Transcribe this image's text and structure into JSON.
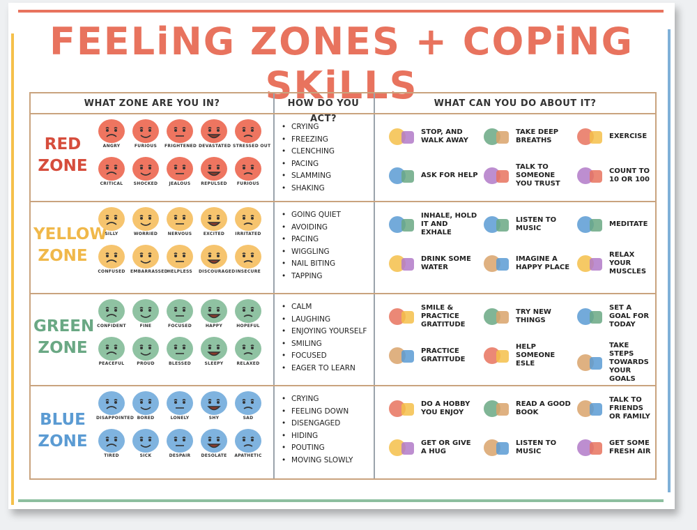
{
  "title": "FEELiNG ZONES + COPiNG SKiLLS",
  "headers": {
    "zone": "WHAT ZONE ARE YOU IN?",
    "act": "HOW DO YOU ACT?",
    "do": "WHAT CAN YOU DO ABOUT IT?"
  },
  "colors": {
    "red": "#ee7560",
    "yellow": "#f6c46e",
    "green": "#8fc2a2",
    "blue": "#7fb3df",
    "red_text": "#d64d3c",
    "yellow_text": "#f0b84a",
    "green_text": "#6aa884",
    "blue_text": "#5b9bd3"
  },
  "zones": [
    {
      "key": "red",
      "name_line1": "RED",
      "name_line2": "ZONE",
      "faces": [
        "ANGRY",
        "FURIOUS",
        "FRIGHTENED",
        "DEVASTATED",
        "STRESSED OUT",
        "CRITICAL",
        "SHOCKED",
        "JEALOUS",
        "REPULSED",
        "FURIOUS"
      ],
      "actions": [
        "CRYING",
        "FREEZING",
        "CLENCHING",
        "PACING",
        "SLAMMING",
        "SHAKING"
      ],
      "skills": [
        {
          "icon": "stop-walk-icon",
          "text": "STOP, AND WALK AWAY"
        },
        {
          "icon": "lungs-icon",
          "text": "TAKE DEEP BREATHS"
        },
        {
          "icon": "exercise-icon",
          "text": "EXERCISE"
        },
        {
          "icon": "help-icon",
          "text": "ASK FOR HELP"
        },
        {
          "icon": "talk-icon",
          "text": "TALK TO SOMEONE YOU TRUST"
        },
        {
          "icon": "numbers-icon",
          "text": "COUNT TO 10 OR 100"
        }
      ]
    },
    {
      "key": "yellow",
      "name_line1": "YELLOW",
      "name_line2": "ZONE",
      "faces": [
        "SILLY",
        "WORRIED",
        "NERVOUS",
        "EXCITED",
        "IRRITATED",
        "CONFUSED",
        "EMBARRASSED",
        "HELPLESS",
        "DISCOURAGED",
        "INSECURE"
      ],
      "actions": [
        "GOING QUIET",
        "AVOIDING",
        "PACING",
        "WIGGLING",
        "NAIL BITING",
        "TAPPING"
      ],
      "skills": [
        {
          "icon": "inhale-exhale-icon",
          "text": "INHALE, HOLD IT AND EXHALE"
        },
        {
          "icon": "headphones-icon",
          "text": "LISTEN TO MUSIC"
        },
        {
          "icon": "meditate-icon",
          "text": "MEDITATE"
        },
        {
          "icon": "water-bottle-icon",
          "text": "DRINK SOME WATER"
        },
        {
          "icon": "landscape-icon",
          "text": "IMAGINE A HAPPY PLACE"
        },
        {
          "icon": "relax-icon",
          "text": "RELAX YOUR MUSCLES"
        }
      ]
    },
    {
      "key": "green",
      "name_line1": "GREEN",
      "name_line2": "ZONE",
      "faces": [
        "CONFIDENT",
        "FINE",
        "FOCUSED",
        "HAPPY",
        "HOPEFUL",
        "PEACEFUL",
        "PROUD",
        "BLESSED",
        "SLEEPY",
        "RELAXED"
      ],
      "actions": [
        "CALM",
        "LAUGHING",
        "ENJOYING YOURSELF",
        "SMILING",
        "FOCUSED",
        "EAGER TO LEARN"
      ],
      "skills": [
        {
          "icon": "smile-icon",
          "text": "SMILE & PRACTICE GRATITUDE"
        },
        {
          "icon": "palette-icon",
          "text": "TRY NEW THINGS"
        },
        {
          "icon": "target-icon",
          "text": "SET A GOAL FOR TODAY"
        },
        {
          "icon": "gratitude-icon",
          "text": "PRACTICE GRATITUDE"
        },
        {
          "icon": "heart-hand-icon",
          "text": "HELP SOMEONE ESLE"
        },
        {
          "icon": "footsteps-icon",
          "text": "TAKE STEPS TOWARDS YOUR GOALS"
        }
      ]
    },
    {
      "key": "blue",
      "name_line1": "BLUE",
      "name_line2": "ZONE",
      "faces": [
        "DISAPPOINTED",
        "BORED",
        "LONELY",
        "SHY",
        "SAD",
        "TIRED",
        "SICK",
        "DESPAIR",
        "DESOLATE",
        "APATHETIC"
      ],
      "actions": [
        "CRYING",
        "FEELING DOWN",
        "DISENGAGED",
        "HIDING",
        "POUTING",
        "MOVING SLOWLY"
      ],
      "skills": [
        {
          "icon": "watering-can-icon",
          "text": "DO A HOBBY YOU ENJOY"
        },
        {
          "icon": "book-icon",
          "text": "READ A GOOD BOOK"
        },
        {
          "icon": "friends-icon",
          "text": "TALK TO FRIENDS OR FAMILY"
        },
        {
          "icon": "hug-icon",
          "text": "GET OR GIVE A HUG"
        },
        {
          "icon": "music-notes-icon",
          "text": "LISTEN TO MUSIC"
        },
        {
          "icon": "wind-icon",
          "text": "GET SOME FRESH AIR"
        }
      ]
    }
  ]
}
